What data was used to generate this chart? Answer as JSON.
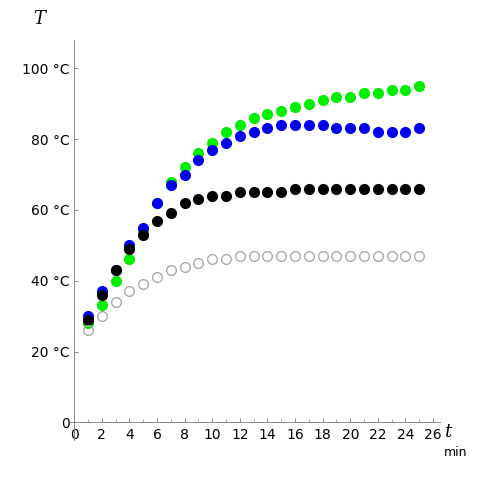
{
  "xlabel_text": "t",
  "xlabel_unit": "min",
  "ylabel_text": "T",
  "x_ticks": [
    0,
    2,
    4,
    6,
    8,
    10,
    12,
    14,
    16,
    18,
    20,
    22,
    24,
    26
  ],
  "y_tick_labels": [
    "0",
    "20 °C",
    "40 °C",
    "60 °C",
    "80 °C",
    "100 °C"
  ],
  "y_tick_vals": [
    0,
    20,
    40,
    60,
    80,
    100
  ],
  "xlim": [
    -0.3,
    26.5
  ],
  "ylim": [
    -5,
    108
  ],
  "series": {
    "green": {
      "color": "#00EE00",
      "filled": true,
      "x": [
        1,
        2,
        3,
        4,
        5,
        6,
        7,
        8,
        9,
        10,
        11,
        12,
        13,
        14,
        15,
        16,
        17,
        18,
        19,
        20,
        21,
        22,
        23,
        24,
        25
      ],
      "y": [
        28,
        33,
        40,
        46,
        54,
        62,
        68,
        72,
        76,
        79,
        82,
        84,
        86,
        87,
        88,
        89,
        90,
        91,
        92,
        92,
        93,
        93,
        94,
        94,
        95
      ]
    },
    "blue": {
      "color": "#0000EE",
      "filled": true,
      "x": [
        1,
        2,
        3,
        4,
        5,
        6,
        7,
        8,
        9,
        10,
        11,
        12,
        13,
        14,
        15,
        16,
        17,
        18,
        19,
        20,
        21,
        22,
        23,
        24,
        25
      ],
      "y": [
        30,
        37,
        43,
        50,
        55,
        62,
        67,
        70,
        74,
        77,
        79,
        81,
        82,
        83,
        84,
        84,
        84,
        84,
        83,
        83,
        83,
        82,
        82,
        82,
        83
      ]
    },
    "black": {
      "color": "#000000",
      "filled": true,
      "x": [
        1,
        2,
        3,
        4,
        5,
        6,
        7,
        8,
        9,
        10,
        11,
        12,
        13,
        14,
        15,
        16,
        17,
        18,
        19,
        20,
        21,
        22,
        23,
        24,
        25
      ],
      "y": [
        29,
        36,
        43,
        49,
        53,
        57,
        59,
        62,
        63,
        64,
        64,
        65,
        65,
        65,
        65,
        66,
        66,
        66,
        66,
        66,
        66,
        66,
        66,
        66,
        66
      ]
    },
    "white": {
      "color": "#aaaaaa",
      "filled": false,
      "x": [
        1,
        2,
        3,
        4,
        5,
        6,
        7,
        8,
        9,
        10,
        11,
        12,
        13,
        14,
        15,
        16,
        17,
        18,
        19,
        20,
        21,
        22,
        23,
        24,
        25
      ],
      "y": [
        26,
        30,
        34,
        37,
        39,
        41,
        43,
        44,
        45,
        46,
        46,
        47,
        47,
        47,
        47,
        47,
        47,
        47,
        47,
        47,
        47,
        47,
        47,
        47,
        47
      ]
    }
  },
  "marker_size": 7,
  "background_color": "#ffffff"
}
